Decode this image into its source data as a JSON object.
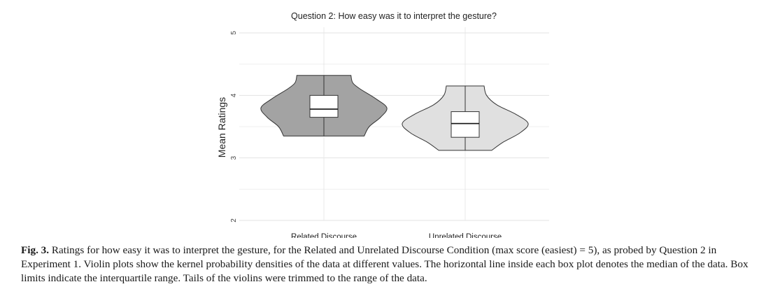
{
  "chart_data": {
    "type": "violin",
    "title": "Question 2: How easy was it to interpret the gesture?",
    "ylabel": "Mean Ratings",
    "xlabel": "",
    "ylim": [
      1.9,
      5.2
    ],
    "yticks": [
      2,
      3,
      4,
      5
    ],
    "grid": true,
    "categories": [
      "Related Discourse",
      "Unrelated Discourse"
    ],
    "series": [
      {
        "category": "Related Discourse",
        "color": "#a3a3a3",
        "min": 3.35,
        "max": 4.32,
        "q1": 3.65,
        "median": 3.78,
        "q3": 4.0,
        "density": [
          [
            3.35,
            0.64
          ],
          [
            3.5,
            0.72
          ],
          [
            3.65,
            0.9
          ],
          [
            3.8,
            1.0
          ],
          [
            3.95,
            0.82
          ],
          [
            4.1,
            0.58
          ],
          [
            4.2,
            0.46
          ],
          [
            4.32,
            0.43
          ]
        ]
      },
      {
        "category": "Unrelated Discourse",
        "color": "#e0e0e0",
        "min": 3.12,
        "max": 4.15,
        "q1": 3.33,
        "median": 3.55,
        "q3": 3.74,
        "density": [
          [
            3.12,
            0.42
          ],
          [
            3.25,
            0.6
          ],
          [
            3.4,
            0.87
          ],
          [
            3.55,
            1.0
          ],
          [
            3.7,
            0.8
          ],
          [
            3.85,
            0.5
          ],
          [
            4.0,
            0.34
          ],
          [
            4.15,
            0.3
          ]
        ]
      }
    ]
  },
  "caption": {
    "label": "Fig. 3.",
    "text": "Ratings for how easy it was to interpret the gesture, for the Related and Unrelated Discourse Condition (max score (easiest) = 5), as probed by Question 2 in Experiment 1. Violin plots show the kernel probability densities of the data at different values. The horizontal line inside each box plot denotes the median of the data. Box limits indicate the interquartile range. Tails of the violins were trimmed to the range of the data."
  }
}
